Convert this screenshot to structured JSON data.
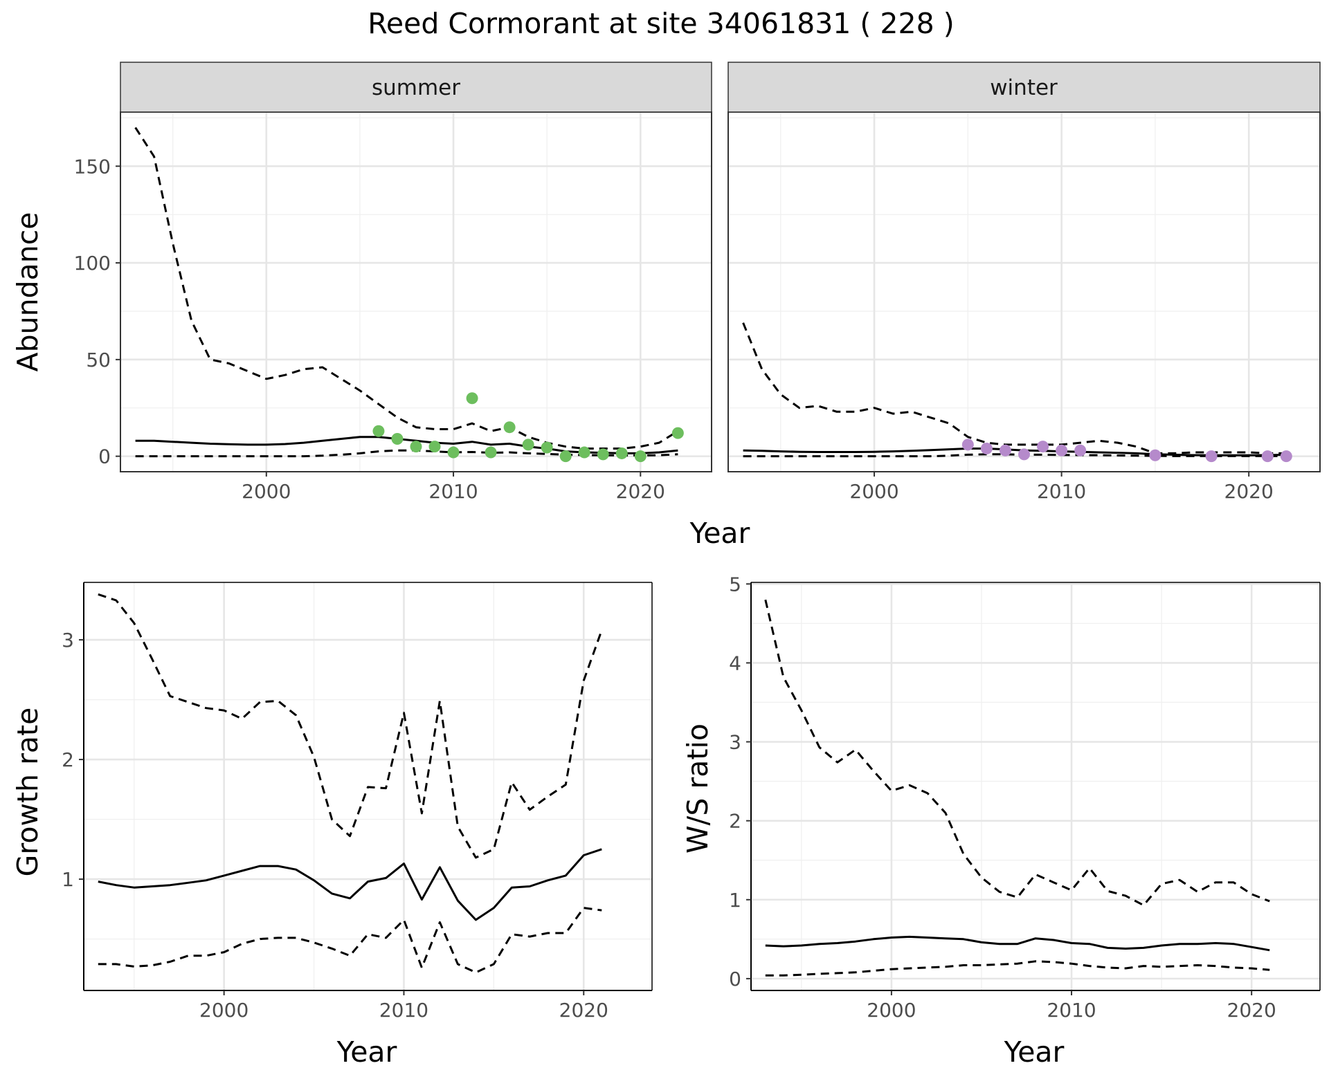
{
  "title": "Reed Cormorant at site 34061831 ( 228 )",
  "chart_data": [
    {
      "type": "line",
      "panel": "summer",
      "xlabel": "Year",
      "ylabel": "Abundance",
      "xlim": [
        1992.2,
        2023.8
      ],
      "ylim": [
        -8,
        178
      ],
      "xticks": [
        2000,
        2010,
        2020
      ],
      "yticks": [
        0,
        50,
        100,
        150
      ],
      "point_color": "#6DBE5E",
      "series": [
        {
          "role": "mean",
          "style": "solid",
          "x": [
            1993,
            1994,
            1995,
            1996,
            1997,
            1998,
            1999,
            2000,
            2001,
            2002,
            2003,
            2004,
            2005,
            2006,
            2007,
            2008,
            2009,
            2010,
            2011,
            2012,
            2013,
            2014,
            2015,
            2016,
            2017,
            2018,
            2019,
            2020,
            2021,
            2022
          ],
          "values": [
            8,
            8,
            7.5,
            7,
            6.5,
            6.2,
            6,
            6,
            6.3,
            7,
            8,
            9,
            10,
            10,
            9,
            8,
            7,
            6.5,
            7.5,
            6,
            6.5,
            5,
            4,
            2.5,
            2,
            1.8,
            1.5,
            1.5,
            2,
            3
          ]
        },
        {
          "role": "upper",
          "style": "dashed",
          "x": [
            1993,
            1994,
            1995,
            1996,
            1997,
            1998,
            1999,
            2000,
            2001,
            2002,
            2003,
            2004,
            2005,
            2006,
            2007,
            2008,
            2009,
            2010,
            2011,
            2012,
            2013,
            2014,
            2015,
            2016,
            2017,
            2018,
            2019,
            2020,
            2021,
            2022
          ],
          "values": [
            170,
            155,
            110,
            70,
            50,
            48,
            44,
            40,
            42,
            45,
            46,
            40,
            34,
            27,
            20,
            15,
            14,
            14,
            17,
            13,
            15,
            10,
            7,
            5,
            4,
            4,
            4,
            5,
            7,
            13
          ]
        },
        {
          "role": "lower",
          "style": "dashed",
          "x": [
            1993,
            1994,
            1995,
            1996,
            1997,
            1998,
            1999,
            2000,
            2001,
            2002,
            2003,
            2004,
            2005,
            2006,
            2007,
            2008,
            2009,
            2010,
            2011,
            2012,
            2013,
            2014,
            2015,
            2016,
            2017,
            2018,
            2019,
            2020,
            2021,
            2022
          ],
          "values": [
            0,
            0,
            0,
            0,
            0,
            0,
            0,
            0,
            0,
            0,
            0.3,
            0.8,
            1.5,
            2.5,
            3,
            3,
            2.5,
            2,
            2.2,
            1.8,
            2,
            1.5,
            1.2,
            0.8,
            0.6,
            0.5,
            0.4,
            0.4,
            0.5,
            1
          ]
        },
        {
          "role": "observed",
          "style": "points",
          "x": [
            2006,
            2007,
            2008,
            2009,
            2010,
            2011,
            2012,
            2013,
            2014,
            2015,
            2016,
            2017,
            2018,
            2019,
            2020,
            2022
          ],
          "values": [
            13,
            9,
            5,
            5,
            2,
            30,
            2,
            15,
            6,
            4.5,
            0,
            2,
            1,
            1.5,
            0,
            12
          ]
        }
      ]
    },
    {
      "type": "line",
      "panel": "winter",
      "xlabel": "Year",
      "ylabel": "Abundance",
      "xlim": [
        1992.2,
        2023.8
      ],
      "ylim": [
        -8,
        178
      ],
      "xticks": [
        2000,
        2010,
        2020
      ],
      "yticks": [
        0,
        50,
        100,
        150
      ],
      "point_color": "#B58ACB",
      "series": [
        {
          "role": "mean",
          "style": "solid",
          "x": [
            1993,
            1994,
            1995,
            1996,
            1997,
            1998,
            1999,
            2000,
            2001,
            2002,
            2003,
            2004,
            2005,
            2006,
            2007,
            2008,
            2009,
            2010,
            2011,
            2012,
            2013,
            2014,
            2015,
            2016,
            2017,
            2018,
            2019,
            2020,
            2021,
            2022
          ],
          "values": [
            3,
            2.8,
            2.5,
            2.3,
            2.2,
            2.2,
            2.2,
            2.3,
            2.5,
            2.8,
            3.2,
            3.6,
            4,
            4,
            3.5,
            3,
            2.8,
            2.5,
            2.3,
            2,
            1.8,
            1.5,
            1,
            0.8,
            0.6,
            0.5,
            0.5,
            0.5,
            0.6,
            0.8
          ]
        },
        {
          "role": "upper",
          "style": "dashed",
          "x": [
            1993,
            1994,
            1995,
            1996,
            1997,
            1998,
            1999,
            2000,
            2001,
            2002,
            2003,
            2004,
            2005,
            2006,
            2007,
            2008,
            2009,
            2010,
            2011,
            2012,
            2013,
            2014,
            2015,
            2016,
            2017,
            2018,
            2019,
            2020,
            2021,
            2022
          ],
          "values": [
            69,
            45,
            32,
            25,
            26,
            23,
            23,
            25,
            22,
            23,
            20,
            17,
            10,
            7,
            6,
            6,
            6,
            6,
            7,
            8,
            7,
            5,
            1.5,
            1.5,
            2,
            2,
            2,
            2,
            1.5,
            1.5
          ]
        },
        {
          "role": "lower",
          "style": "dashed",
          "x": [
            1993,
            1994,
            1995,
            1996,
            1997,
            1998,
            1999,
            2000,
            2001,
            2002,
            2003,
            2004,
            2005,
            2006,
            2007,
            2008,
            2009,
            2010,
            2011,
            2012,
            2013,
            2014,
            2015,
            2016,
            2017,
            2018,
            2019,
            2020,
            2021,
            2022
          ],
          "values": [
            0,
            0,
            0,
            0,
            0,
            0,
            0,
            0,
            0,
            0,
            0,
            0.3,
            0.8,
            1,
            1,
            0.8,
            0.8,
            0.7,
            0.6,
            0.5,
            0.4,
            0.3,
            0.2,
            0.1,
            0.1,
            0.1,
            0.1,
            0.1,
            0.1,
            0.1
          ]
        },
        {
          "role": "observed",
          "style": "points",
          "x": [
            2005,
            2006,
            2007,
            2008,
            2009,
            2010,
            2011,
            2015,
            2018,
            2021,
            2022
          ],
          "values": [
            6,
            4,
            3,
            1,
            5,
            3,
            3,
            0.5,
            0,
            0,
            0
          ]
        }
      ]
    },
    {
      "type": "line",
      "panel": "growth",
      "xlabel": "Year",
      "ylabel": "Growth rate",
      "xlim": [
        1992.2,
        2023.8
      ],
      "ylim": [
        0.07,
        3.48
      ],
      "xticks": [
        2000,
        2010,
        2020
      ],
      "yticks": [
        1,
        2,
        3
      ],
      "series": [
        {
          "role": "mean",
          "style": "solid",
          "x": [
            1993,
            1994,
            1995,
            1996,
            1997,
            1998,
            1999,
            2000,
            2001,
            2002,
            2003,
            2004,
            2005,
            2006,
            2007,
            2008,
            2009,
            2010,
            2011,
            2012,
            2013,
            2014,
            2015,
            2016,
            2017,
            2018,
            2019,
            2020,
            2021
          ],
          "values": [
            0.98,
            0.95,
            0.93,
            0.94,
            0.95,
            0.97,
            0.99,
            1.03,
            1.07,
            1.11,
            1.11,
            1.08,
            0.99,
            0.88,
            0.84,
            0.98,
            1.01,
            1.13,
            0.83,
            1.1,
            0.82,
            0.66,
            0.76,
            0.93,
            0.94,
            0.99,
            1.03,
            1.2,
            1.25
          ]
        },
        {
          "role": "upper",
          "style": "dashed",
          "x": [
            1993,
            1994,
            1995,
            1996,
            1997,
            1998,
            1999,
            2000,
            2001,
            2002,
            2003,
            2004,
            2005,
            2006,
            2007,
            2008,
            2009,
            2010,
            2011,
            2012,
            2013,
            2014,
            2015,
            2016,
            2017,
            2018,
            2019,
            2020,
            2021
          ],
          "values": [
            3.38,
            3.33,
            3.14,
            2.84,
            2.53,
            2.48,
            2.43,
            2.41,
            2.34,
            2.48,
            2.49,
            2.37,
            2.02,
            1.5,
            1.36,
            1.77,
            1.76,
            2.39,
            1.55,
            2.49,
            1.44,
            1.18,
            1.25,
            1.81,
            1.58,
            1.69,
            1.79,
            2.66,
            3.08
          ]
        },
        {
          "role": "lower",
          "style": "dashed",
          "x": [
            1993,
            1994,
            1995,
            1996,
            1997,
            1998,
            1999,
            2000,
            2001,
            2002,
            2003,
            2004,
            2005,
            2006,
            2007,
            2008,
            2009,
            2010,
            2011,
            2012,
            2013,
            2014,
            2015,
            2016,
            2017,
            2018,
            2019,
            2020,
            2021
          ],
          "values": [
            0.29,
            0.29,
            0.27,
            0.28,
            0.31,
            0.36,
            0.36,
            0.39,
            0.46,
            0.5,
            0.51,
            0.51,
            0.47,
            0.42,
            0.36,
            0.54,
            0.51,
            0.66,
            0.26,
            0.64,
            0.29,
            0.22,
            0.29,
            0.54,
            0.52,
            0.55,
            0.55,
            0.76,
            0.74
          ]
        }
      ]
    },
    {
      "type": "line",
      "panel": "ratio",
      "xlabel": "Year",
      "ylabel": "W/S ratio",
      "xlim": [
        1992.2,
        2023.8
      ],
      "ylim": [
        -0.15,
        5.02
      ],
      "xticks": [
        2000,
        2010,
        2020
      ],
      "yticks": [
        0,
        1,
        2,
        3,
        4,
        5
      ],
      "series": [
        {
          "role": "mean",
          "style": "solid",
          "x": [
            1993,
            1994,
            1995,
            1996,
            1997,
            1998,
            1999,
            2000,
            2001,
            2002,
            2003,
            2004,
            2005,
            2006,
            2007,
            2008,
            2009,
            2010,
            2011,
            2012,
            2013,
            2014,
            2015,
            2016,
            2017,
            2018,
            2019,
            2020,
            2021
          ],
          "values": [
            0.42,
            0.41,
            0.42,
            0.44,
            0.45,
            0.47,
            0.5,
            0.52,
            0.53,
            0.52,
            0.51,
            0.5,
            0.46,
            0.44,
            0.44,
            0.51,
            0.49,
            0.45,
            0.44,
            0.39,
            0.38,
            0.39,
            0.42,
            0.44,
            0.44,
            0.45,
            0.44,
            0.4,
            0.36
          ]
        },
        {
          "role": "upper",
          "style": "dashed",
          "x": [
            1993,
            1994,
            1995,
            1996,
            1997,
            1998,
            1999,
            2000,
            2001,
            2002,
            2003,
            2004,
            2005,
            2006,
            2007,
            2008,
            2009,
            2010,
            2011,
            2012,
            2013,
            2014,
            2015,
            2016,
            2017,
            2018,
            2019,
            2020,
            2021
          ],
          "values": [
            4.8,
            3.82,
            3.4,
            2.93,
            2.74,
            2.9,
            2.63,
            2.38,
            2.45,
            2.35,
            2.1,
            1.58,
            1.28,
            1.1,
            1.03,
            1.32,
            1.22,
            1.12,
            1.4,
            1.11,
            1.05,
            0.93,
            1.2,
            1.25,
            1.1,
            1.22,
            1.22,
            1.07,
            0.98
          ]
        },
        {
          "role": "lower",
          "style": "dashed",
          "x": [
            1993,
            1994,
            1995,
            1996,
            1997,
            1998,
            1999,
            2000,
            2001,
            2002,
            2003,
            2004,
            2005,
            2006,
            2007,
            2008,
            2009,
            2010,
            2011,
            2012,
            2013,
            2014,
            2015,
            2016,
            2017,
            2018,
            2019,
            2020,
            2021
          ],
          "values": [
            0.04,
            0.04,
            0.05,
            0.06,
            0.07,
            0.08,
            0.1,
            0.12,
            0.13,
            0.14,
            0.15,
            0.17,
            0.17,
            0.18,
            0.19,
            0.22,
            0.21,
            0.19,
            0.16,
            0.14,
            0.13,
            0.16,
            0.15,
            0.16,
            0.17,
            0.16,
            0.14,
            0.13,
            0.11
          ]
        }
      ]
    }
  ]
}
